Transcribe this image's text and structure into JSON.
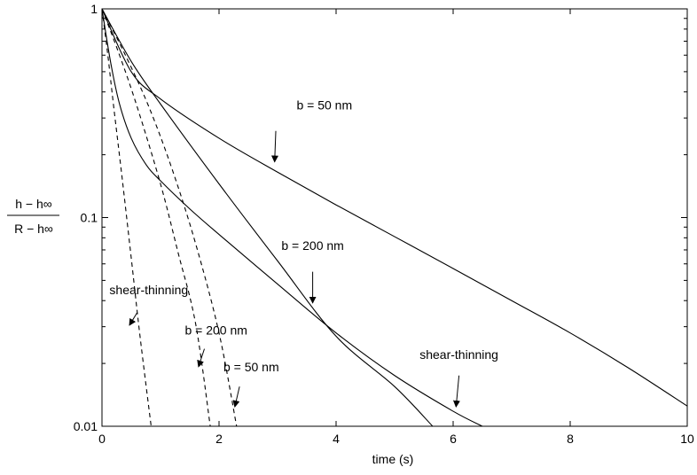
{
  "chart_data": {
    "type": "line",
    "title": "",
    "xlabel": "time (s)",
    "ylabel": {
      "numerator": "h − h∞",
      "denominator": "R − h∞"
    },
    "xlim": [
      0,
      10
    ],
    "ylim": [
      0.01,
      1
    ],
    "yscale": "log",
    "grid": false,
    "x_ticks": [
      "0",
      "2",
      "4",
      "6",
      "8",
      "10"
    ],
    "y_ticks": [
      "0.01",
      "0.1",
      "1"
    ],
    "series": [
      {
        "style": "solid",
        "x": [
          0,
          0.5,
          1,
          2,
          3,
          4,
          5,
          6,
          7,
          8,
          9,
          10
        ],
        "y": [
          1,
          0.5,
          0.37,
          0.24,
          0.165,
          0.115,
          0.081,
          0.057,
          0.04,
          0.028,
          0.019,
          0.0125
        ]
      },
      {
        "style": "solid",
        "x": [
          0,
          0.5,
          1,
          2,
          3,
          4,
          5,
          5.65
        ],
        "y": [
          1,
          0.56,
          0.35,
          0.145,
          0.062,
          0.027,
          0.0155,
          0.01
        ]
      },
      {
        "style": "solid",
        "x": [
          0,
          0.15,
          0.3,
          0.5,
          0.75,
          1,
          1.5,
          2,
          3,
          4,
          5,
          6,
          6.5
        ],
        "y": [
          1,
          0.55,
          0.35,
          0.24,
          0.18,
          0.15,
          0.11,
          0.083,
          0.048,
          0.028,
          0.0175,
          0.0118,
          0.01
        ]
      },
      {
        "style": "dashed",
        "x": [
          0,
          0.1,
          0.2,
          0.35,
          0.5,
          0.65,
          0.84
        ],
        "y": [
          1,
          0.6,
          0.34,
          0.15,
          0.064,
          0.027,
          0.01
        ]
      },
      {
        "style": "dashed",
        "x": [
          0,
          0.3,
          0.6,
          1,
          1.3,
          1.6,
          1.85
        ],
        "y": [
          1,
          0.6,
          0.34,
          0.145,
          0.068,
          0.031,
          0.01
        ]
      },
      {
        "style": "dashed",
        "x": [
          0,
          0.4,
          0.8,
          1.2,
          1.6,
          2,
          2.3
        ],
        "y": [
          1,
          0.6,
          0.34,
          0.17,
          0.075,
          0.028,
          0.01
        ]
      }
    ],
    "annotations": [
      {
        "label": "b = 50 nm",
        "text_x": 3.8,
        "text_y": 0.33,
        "arrow_from": [
          2.97,
          0.26
        ],
        "arrow_to": [
          2.95,
          0.185
        ]
      },
      {
        "label": "b = 200 nm",
        "text_x": 3.6,
        "text_y": 0.07,
        "arrow_from": [
          3.6,
          0.055
        ],
        "arrow_to": [
          3.6,
          0.039
        ]
      },
      {
        "label": "shear-thinning",
        "text_x": 0.8,
        "text_y": 0.043,
        "arrow_from": [
          0.6,
          0.035
        ],
        "arrow_to": [
          0.47,
          0.0305
        ]
      },
      {
        "label": "b = 200 nm",
        "text_x": 1.95,
        "text_y": 0.0275,
        "arrow_from": [
          1.75,
          0.0235
        ],
        "arrow_to": [
          1.65,
          0.0193
        ]
      },
      {
        "label": "b = 50 nm",
        "text_x": 2.55,
        "text_y": 0.0183,
        "arrow_from": [
          2.35,
          0.0155
        ],
        "arrow_to": [
          2.27,
          0.0124
        ]
      },
      {
        "label": "shear-thinning",
        "text_x": 6.1,
        "text_y": 0.021,
        "arrow_from": [
          6.1,
          0.0175
        ],
        "arrow_to": [
          6.05,
          0.0124
        ]
      }
    ]
  }
}
